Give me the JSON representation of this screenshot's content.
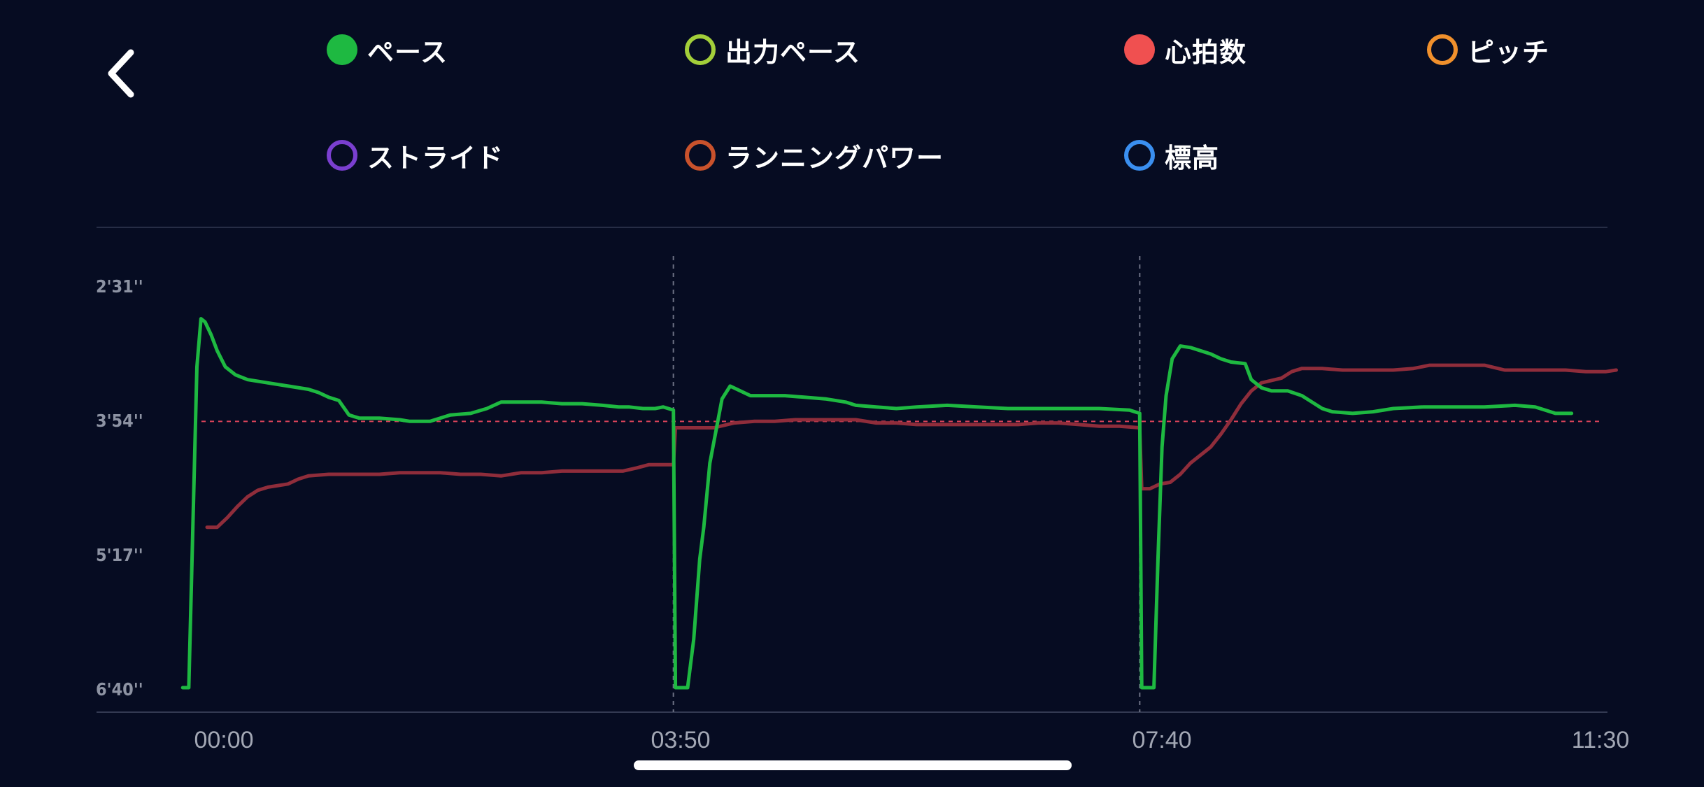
{
  "nav": {
    "back_icon": "chevron-left-icon"
  },
  "legend": [
    {
      "label": "ペース",
      "color": "#1eb941",
      "filled": true
    },
    {
      "label": "出力ペース",
      "color": "#a3cf3a",
      "filled": false
    },
    {
      "label": "心拍数",
      "color": "#f05050",
      "filled": true
    },
    {
      "label": "ピッチ",
      "color": "#f0902c",
      "filled": false
    },
    {
      "label": "ストライド",
      "color": "#7a3fd0",
      "filled": false
    },
    {
      "label": "ランニングパワー",
      "color": "#c9522c",
      "filled": false
    },
    {
      "label": "標高",
      "color": "#3a8ff0",
      "filled": false
    }
  ],
  "chart_data": {
    "type": "line",
    "y_ticks": [
      "2'31''",
      "3'54''",
      "5'17''",
      "6'40''"
    ],
    "x_ticks": [
      "00:00",
      "03:50",
      "07:40",
      "11:30"
    ],
    "xlim": [
      0,
      690
    ],
    "ylim": [
      151,
      400
    ],
    "y_inverted": true,
    "target_pace": 234,
    "lap_markers": [
      230,
      460
    ],
    "series": [
      {
        "color": "#1eb941",
        "points": [
          [
            -12,
            400
          ],
          [
            -9,
            400
          ],
          [
            -7,
            300
          ],
          [
            -5,
            200
          ],
          [
            -3,
            170
          ],
          [
            -1,
            172
          ],
          [
            2,
            180
          ],
          [
            5,
            190
          ],
          [
            9,
            200
          ],
          [
            14,
            205
          ],
          [
            20,
            208
          ],
          [
            30,
            210
          ],
          [
            40,
            212
          ],
          [
            50,
            214
          ],
          [
            55,
            216
          ],
          [
            60,
            219
          ],
          [
            65,
            221
          ],
          [
            70,
            230
          ],
          [
            75,
            232
          ],
          [
            85,
            232
          ],
          [
            95,
            233
          ],
          [
            100,
            234
          ],
          [
            110,
            234
          ],
          [
            115,
            232
          ],
          [
            120,
            230
          ],
          [
            130,
            229
          ],
          [
            138,
            226
          ],
          [
            145,
            222
          ],
          [
            155,
            222
          ],
          [
            165,
            222
          ],
          [
            175,
            223
          ],
          [
            185,
            223
          ],
          [
            195,
            224
          ],
          [
            203,
            225
          ],
          [
            208,
            225
          ],
          [
            215,
            226
          ],
          [
            221,
            226
          ],
          [
            225,
            225
          ],
          [
            230,
            227
          ],
          [
            231,
            400
          ],
          [
            237,
            400
          ],
          [
            240,
            370
          ],
          [
            243,
            320
          ],
          [
            245,
            300
          ],
          [
            248,
            260
          ],
          [
            251,
            240
          ],
          [
            254,
            220
          ],
          [
            258,
            212
          ],
          [
            263,
            215
          ],
          [
            268,
            218
          ],
          [
            275,
            218
          ],
          [
            285,
            218
          ],
          [
            295,
            219
          ],
          [
            305,
            220
          ],
          [
            315,
            222
          ],
          [
            320,
            224
          ],
          [
            330,
            225
          ],
          [
            340,
            226
          ],
          [
            350,
            225
          ],
          [
            365,
            224
          ],
          [
            380,
            225
          ],
          [
            395,
            226
          ],
          [
            410,
            226
          ],
          [
            420,
            226
          ],
          [
            430,
            226
          ],
          [
            440,
            226
          ],
          [
            455,
            227
          ],
          [
            460,
            229
          ],
          [
            461,
            400
          ],
          [
            467,
            400
          ],
          [
            469,
            320
          ],
          [
            471,
            250
          ],
          [
            473,
            218
          ],
          [
            476,
            195
          ],
          [
            480,
            187
          ],
          [
            485,
            188
          ],
          [
            490,
            190
          ],
          [
            495,
            192
          ],
          [
            500,
            195
          ],
          [
            505,
            197
          ],
          [
            512,
            198
          ],
          [
            515,
            208
          ],
          [
            520,
            213
          ],
          [
            525,
            215
          ],
          [
            533,
            215
          ],
          [
            540,
            218
          ],
          [
            545,
            222
          ],
          [
            550,
            226
          ],
          [
            555,
            228
          ],
          [
            565,
            229
          ],
          [
            575,
            228
          ],
          [
            585,
            226
          ],
          [
            600,
            225
          ],
          [
            615,
            225
          ],
          [
            630,
            225
          ],
          [
            645,
            224
          ],
          [
            655,
            225
          ],
          [
            660,
            227
          ],
          [
            665,
            229
          ],
          [
            673,
            229
          ]
        ]
      },
      {
        "color": "#8f2d3b",
        "points": [
          [
            0,
            300
          ],
          [
            5,
            300
          ],
          [
            10,
            294
          ],
          [
            15,
            287
          ],
          [
            20,
            281
          ],
          [
            25,
            277
          ],
          [
            30,
            275
          ],
          [
            35,
            274
          ],
          [
            40,
            273
          ],
          [
            45,
            270
          ],
          [
            50,
            268
          ],
          [
            60,
            267
          ],
          [
            70,
            267
          ],
          [
            85,
            267
          ],
          [
            95,
            266
          ],
          [
            105,
            266
          ],
          [
            115,
            266
          ],
          [
            125,
            267
          ],
          [
            135,
            267
          ],
          [
            145,
            268
          ],
          [
            155,
            266
          ],
          [
            165,
            266
          ],
          [
            175,
            265
          ],
          [
            185,
            265
          ],
          [
            195,
            265
          ],
          [
            205,
            265
          ],
          [
            212,
            263
          ],
          [
            218,
            261
          ],
          [
            225,
            261
          ],
          [
            230,
            261
          ],
          [
            231,
            238
          ],
          [
            240,
            238
          ],
          [
            250,
            238
          ],
          [
            260,
            235
          ],
          [
            270,
            234
          ],
          [
            280,
            234
          ],
          [
            290,
            233
          ],
          [
            300,
            233
          ],
          [
            310,
            233
          ],
          [
            320,
            233
          ],
          [
            330,
            235
          ],
          [
            340,
            235
          ],
          [
            350,
            236
          ],
          [
            360,
            236
          ],
          [
            370,
            236
          ],
          [
            380,
            236
          ],
          [
            390,
            236
          ],
          [
            400,
            236
          ],
          [
            410,
            235
          ],
          [
            420,
            235
          ],
          [
            430,
            236
          ],
          [
            440,
            237
          ],
          [
            450,
            237
          ],
          [
            460,
            238
          ],
          [
            461,
            276
          ],
          [
            465,
            276
          ],
          [
            470,
            273
          ],
          [
            475,
            272
          ],
          [
            480,
            267
          ],
          [
            485,
            260
          ],
          [
            490,
            255
          ],
          [
            495,
            250
          ],
          [
            500,
            242
          ],
          [
            505,
            233
          ],
          [
            510,
            223
          ],
          [
            515,
            215
          ],
          [
            520,
            210
          ],
          [
            530,
            207
          ],
          [
            535,
            203
          ],
          [
            540,
            201
          ],
          [
            550,
            201
          ],
          [
            560,
            202
          ],
          [
            575,
            202
          ],
          [
            585,
            202
          ],
          [
            595,
            201
          ],
          [
            603,
            199
          ],
          [
            610,
            199
          ],
          [
            620,
            199
          ],
          [
            630,
            199
          ],
          [
            640,
            202
          ],
          [
            650,
            202
          ],
          [
            660,
            202
          ],
          [
            670,
            202
          ],
          [
            680,
            203
          ],
          [
            690,
            203
          ],
          [
            695,
            202
          ]
        ]
      }
    ]
  }
}
